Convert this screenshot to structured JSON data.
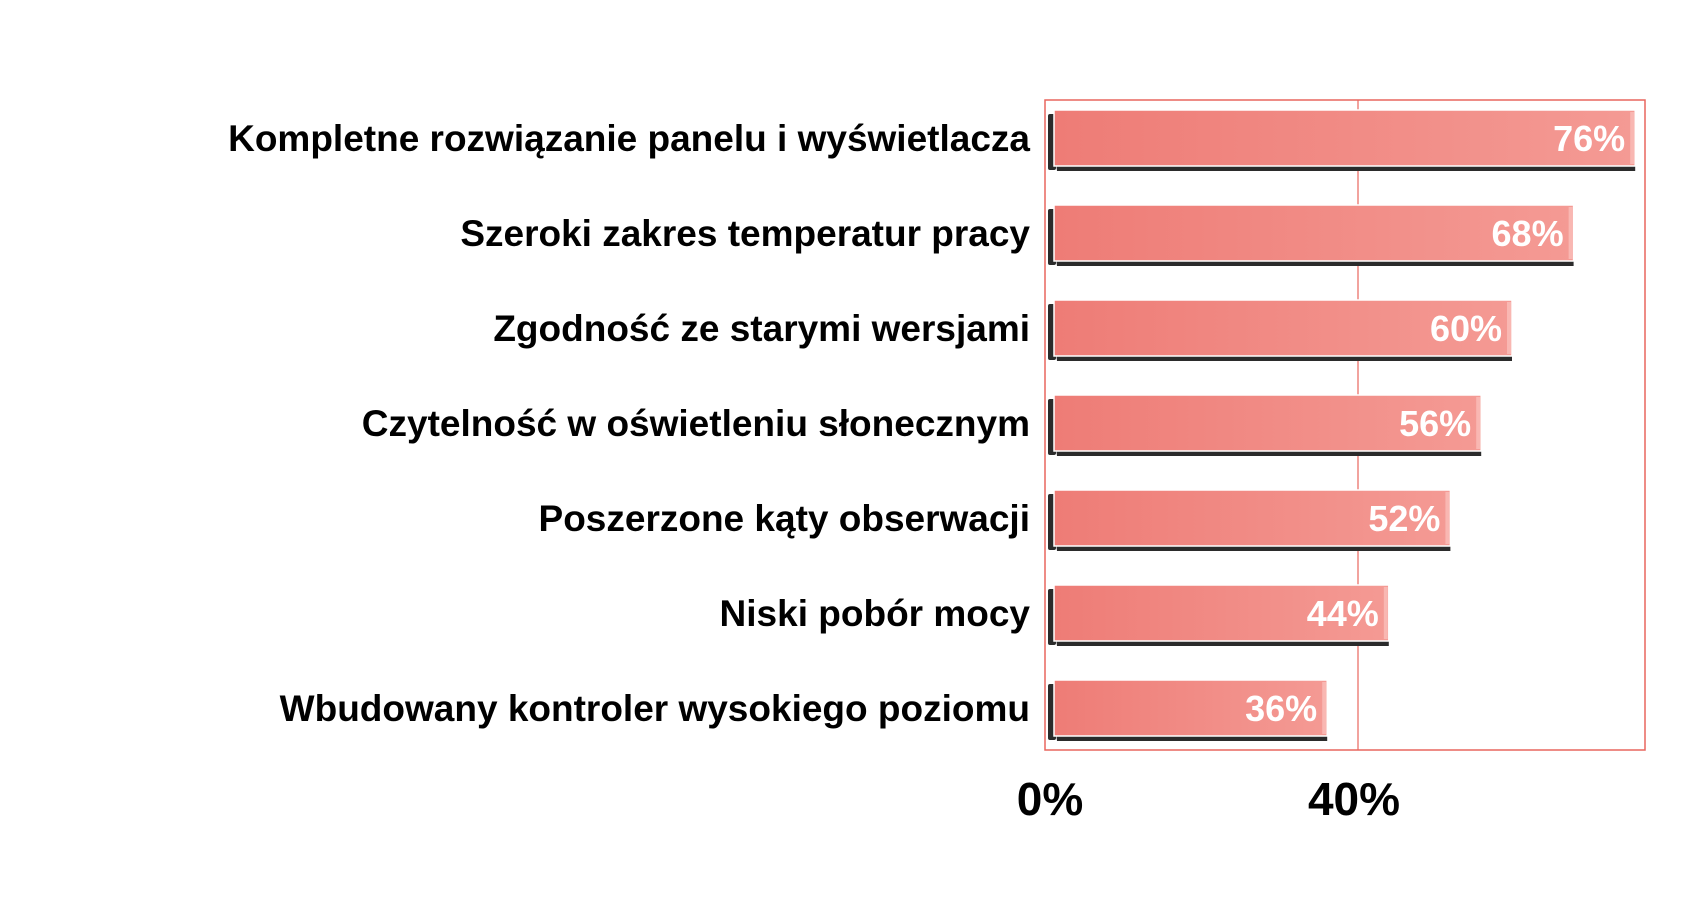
{
  "chart_data": {
    "type": "bar",
    "orientation": "horizontal",
    "title": "",
    "xlabel": "",
    "ylabel": "",
    "categories": [
      "Kompletne rozwiązanie panelu i wyświetlacza",
      "Szeroki zakres temperatur pracy",
      "Zgodność ze starymi wersjami",
      "Czytelność w oświetleniu słonecznym",
      "Poszerzone kąty obserwacji",
      "Niski pobór mocy",
      "Wbudowany kontroler wysokiego poziomu"
    ],
    "values": [
      76,
      68,
      60,
      56,
      52,
      44,
      36
    ],
    "value_labels": [
      "76%",
      "68%",
      "60%",
      "56%",
      "52%",
      "44%",
      "36%"
    ],
    "xlim": [
      0,
      80
    ],
    "x_ticks": [
      0,
      40
    ],
    "x_tick_labels": [
      "0%",
      "40%"
    ],
    "grid": true,
    "legend": "none",
    "colors": {
      "bar": "#f08680",
      "bar_shadow": "#2b2b2b",
      "frame": "#e8665e",
      "gridline": "#e8665e"
    }
  }
}
